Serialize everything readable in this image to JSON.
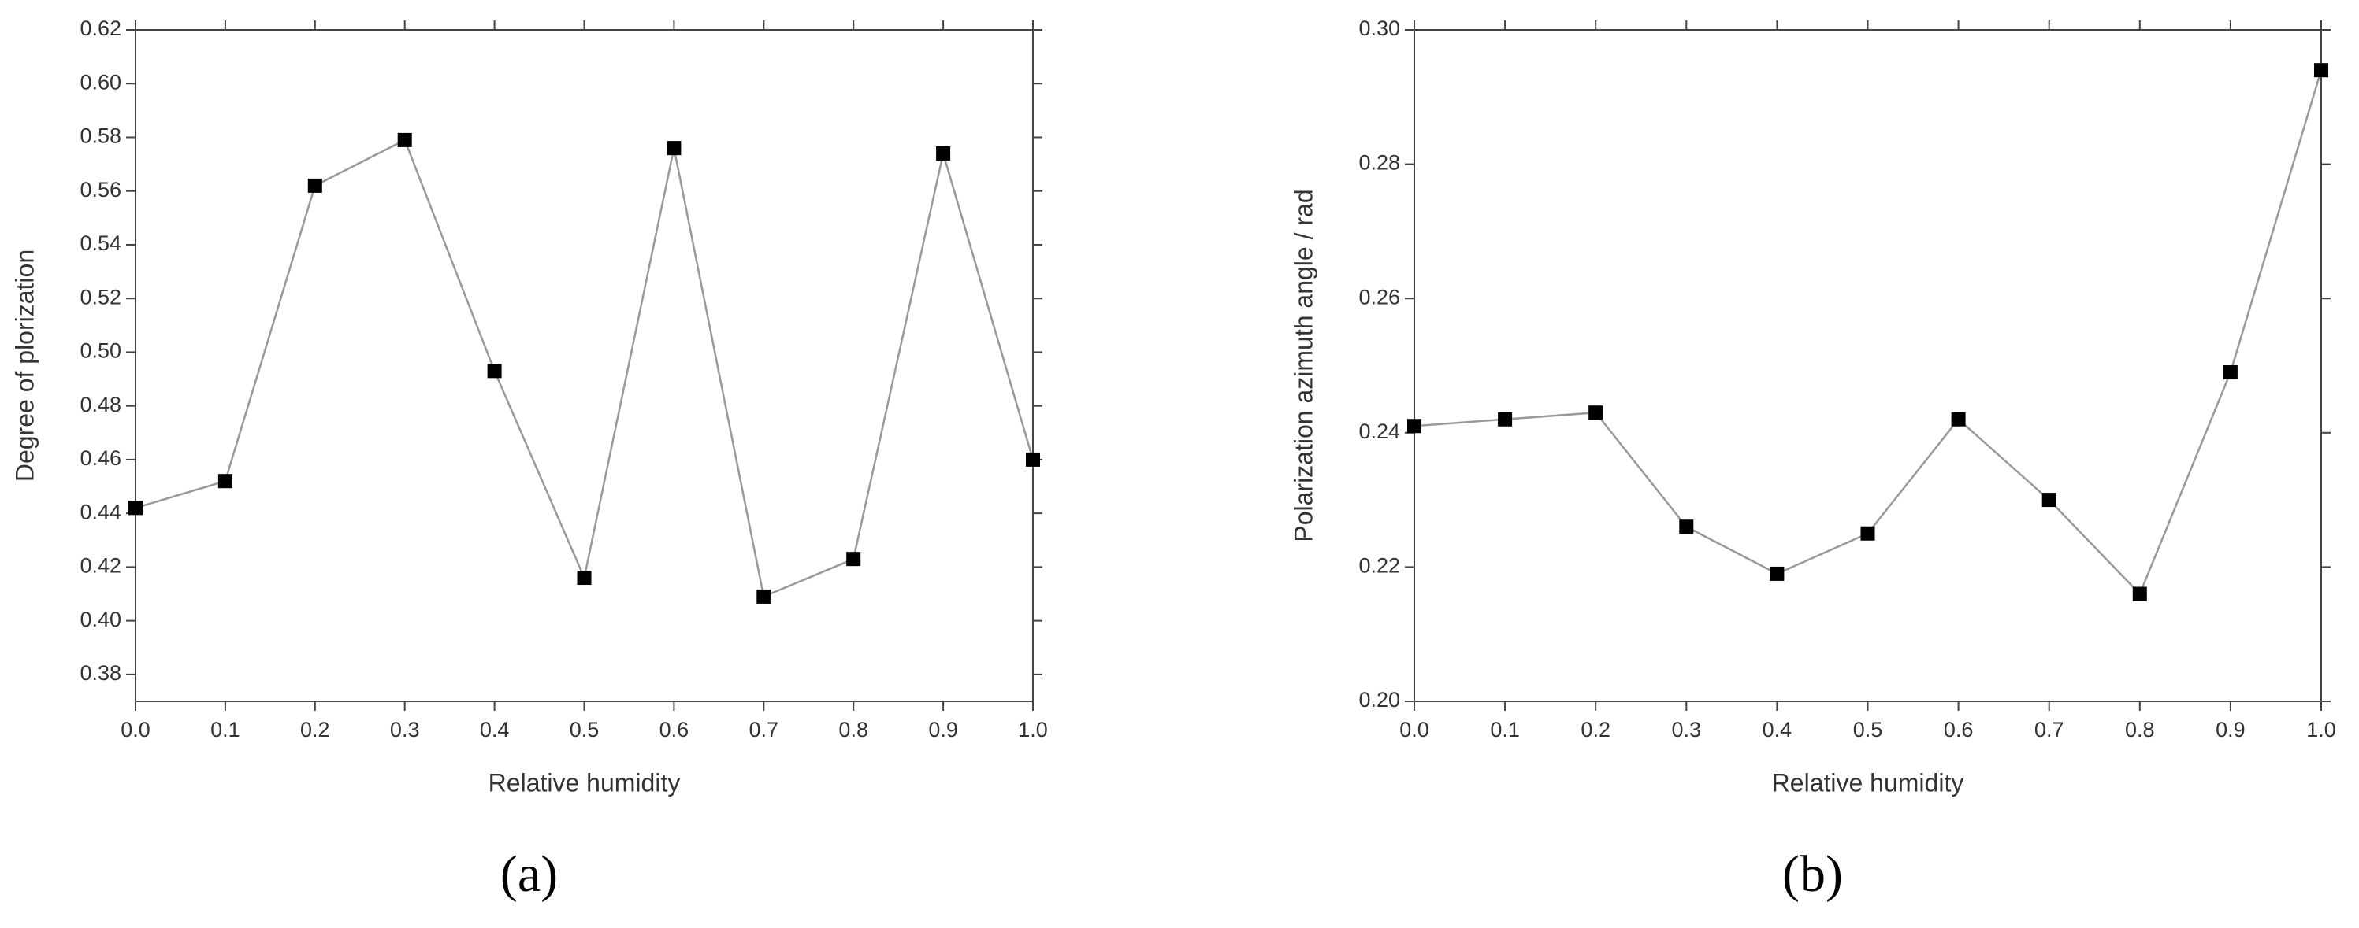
{
  "chart_data": [
    {
      "type": "line",
      "caption": "(a)",
      "xlabel": "Relative humidity",
      "ylabel": "Degree of plorization",
      "x": [
        0.0,
        0.1,
        0.2,
        0.3,
        0.4,
        0.5,
        0.6,
        0.7,
        0.8,
        0.9,
        1.0
      ],
      "series": [
        {
          "color": "#999999",
          "marker_color": "#000000",
          "values": [
            0.442,
            0.452,
            0.562,
            0.579,
            0.493,
            0.416,
            0.576,
            0.409,
            0.423,
            0.574,
            0.46
          ]
        }
      ],
      "xlim": [
        0,
        1
      ],
      "xticks": [
        {
          "value": 0,
          "label": "0.0"
        },
        0.1,
        0.2,
        0.3,
        0.4,
        0.5,
        0.6,
        0.7,
        0.8,
        0.9,
        {
          "value": 1,
          "label": "1.0"
        }
      ],
      "ylim": [
        0.37,
        0.62
      ],
      "yticks": [
        0.38,
        {
          "value": 0.4,
          "label": "0.40"
        },
        0.42,
        0.44,
        0.46,
        0.48,
        {
          "value": 0.5,
          "label": "0.50"
        },
        0.52,
        0.54,
        0.56,
        0.58,
        {
          "value": 0.6,
          "label": "0.60"
        },
        0.62
      ]
    },
    {
      "type": "line",
      "caption": "(b)",
      "xlabel": "Relative humidity",
      "ylabel": "Polarization azimuth angle / rad",
      "x": [
        0.0,
        0.1,
        0.2,
        0.3,
        0.4,
        0.5,
        0.6,
        0.7,
        0.8,
        0.9,
        1.0
      ],
      "series": [
        {
          "color": "#999999",
          "marker_color": "#000000",
          "values": [
            0.241,
            0.242,
            0.243,
            0.226,
            0.219,
            0.225,
            0.242,
            0.23,
            0.216,
            0.249,
            0.294
          ]
        }
      ],
      "xlim": [
        0,
        1
      ],
      "xticks": [
        {
          "value": 0,
          "label": "0.0"
        },
        0.1,
        0.2,
        0.3,
        0.4,
        0.5,
        0.6,
        0.7,
        0.8,
        0.9,
        {
          "value": 1,
          "label": "1.0"
        }
      ],
      "ylim": [
        0.2,
        0.3
      ],
      "yticks": [
        {
          "value": 0.2,
          "label": "0.20"
        },
        0.22,
        0.24,
        0.26,
        0.28,
        {
          "value": 0.3,
          "label": "0.30"
        }
      ]
    }
  ]
}
